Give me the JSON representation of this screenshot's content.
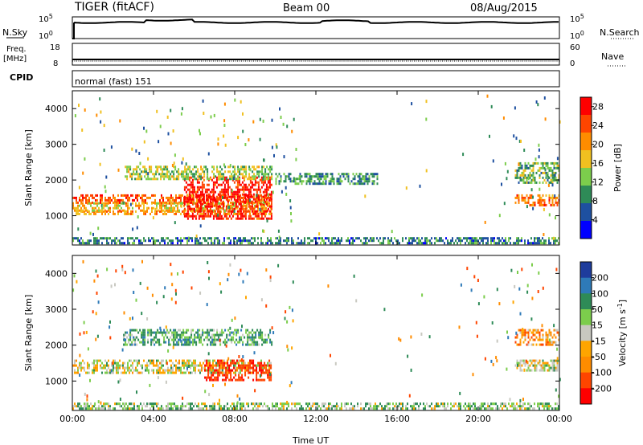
{
  "header": {
    "radar": "TIGER (fitACF)",
    "beam": "Beam 00",
    "date": "08/Aug/2015"
  },
  "strip_labels": {
    "nsky": "N.Sky",
    "nsearch": "N.Search",
    "freq": "Freq.",
    "freq_unit": "[MHz]",
    "nave": "Nave",
    "cpid": "CPID",
    "nsky_ticks": [
      "10^5",
      "10^0"
    ],
    "nsearch_ticks": [
      "10^5",
      "10^0"
    ],
    "freq_ticks": [
      "18",
      "8"
    ],
    "nave_ticks": [
      "60",
      "0"
    ],
    "cpid_value": "normal (fast) 151"
  },
  "chart_data": [
    {
      "type": "heatmap",
      "name": "power",
      "ylabel": "Slant Range [km]",
      "xlabel": "Time UT",
      "x_ticks": [
        "00:00",
        "04:00",
        "08:00",
        "12:00",
        "16:00",
        "20:00",
        "00:00"
      ],
      "xlim_hours": [
        0,
        24
      ],
      "y_ticks": [
        1000,
        2000,
        3000,
        4000
      ],
      "ylim": [
        180,
        4500
      ],
      "colorbar": {
        "label": "Power [dB]",
        "ticks": [
          4,
          8,
          12,
          16,
          20,
          24,
          28
        ],
        "range": [
          0,
          30
        ],
        "colors": [
          "#0000ff",
          "#1e50a0",
          "#2e8b57",
          "#7ccd4c",
          "#f0c020",
          "#ff8c00",
          "#ff4500",
          "#ff0000"
        ]
      },
      "regions": [
        {
          "t0": 0.0,
          "t1": 9.8,
          "r0": 1380,
          "r1": 1600,
          "level": 24
        },
        {
          "t0": 0.0,
          "t1": 9.8,
          "r0": 1050,
          "r1": 1150,
          "level": 20
        },
        {
          "t0": 0.0,
          "t1": 9.8,
          "r0": 1150,
          "r1": 1380,
          "level": 18
        },
        {
          "t0": 5.5,
          "t1": 9.8,
          "r0": 900,
          "r1": 2100,
          "level": 27
        },
        {
          "t0": 2.5,
          "t1": 9.8,
          "r0": 2000,
          "r1": 2400,
          "level": 14
        },
        {
          "t0": 0.0,
          "t1": 24.0,
          "r0": 200,
          "r1": 400,
          "level": 8
        },
        {
          "t0": 21.8,
          "t1": 24.0,
          "r0": 1300,
          "r1": 1600,
          "level": 22
        },
        {
          "t0": 21.8,
          "t1": 24.0,
          "r0": 1900,
          "r1": 2500,
          "level": 12
        },
        {
          "t0": 10.0,
          "t1": 15.0,
          "r0": 1900,
          "r1": 2200,
          "level": 10
        }
      ]
    },
    {
      "type": "heatmap",
      "name": "velocity",
      "ylabel": "Slant Range [km]",
      "xlabel": "Time UT",
      "x_ticks": [
        "00:00",
        "04:00",
        "08:00",
        "12:00",
        "16:00",
        "20:00",
        "00:00"
      ],
      "xlim_hours": [
        0,
        24
      ],
      "y_ticks": [
        1000,
        2000,
        3000,
        4000
      ],
      "ylim": [
        180,
        4500
      ],
      "colorbar": {
        "label": "Velocity [m s^-1]",
        "ticks": [
          200,
          100,
          50,
          15,
          -15,
          -50,
          -100,
          -200
        ],
        "colors": [
          "#1e3c9c",
          "#2e7ab8",
          "#2e8b57",
          "#7ccd4c",
          "#c8c8c0",
          "#ffa500",
          "#ff8c00",
          "#ff4500",
          "#ff0000"
        ]
      },
      "regions": [
        {
          "t0": 0.0,
          "t1": 9.8,
          "r0": 1200,
          "r1": 1600,
          "level": 0
        },
        {
          "t0": 6.5,
          "t1": 9.8,
          "r0": 1000,
          "r1": 1600,
          "level": -180
        },
        {
          "t0": 2.5,
          "t1": 9.8,
          "r0": 2000,
          "r1": 2450,
          "level": 60
        },
        {
          "t0": 0.0,
          "t1": 24.0,
          "r0": 200,
          "r1": 400,
          "level": 30
        },
        {
          "t0": 21.8,
          "t1": 24.0,
          "r0": 1300,
          "r1": 1600,
          "level": 0
        },
        {
          "t0": 21.8,
          "t1": 24.0,
          "r0": 2000,
          "r1": 2450,
          "level": -60
        }
      ]
    }
  ]
}
